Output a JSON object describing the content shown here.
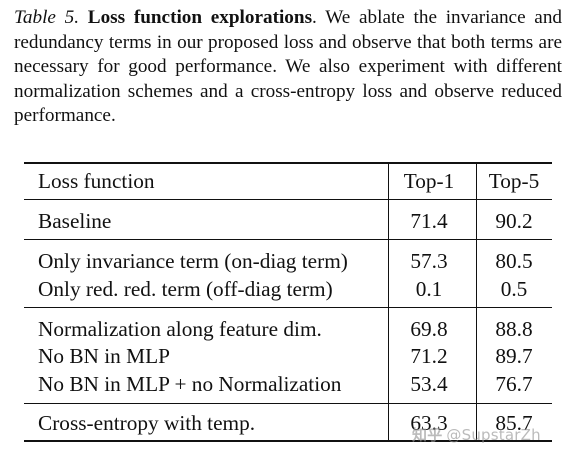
{
  "caption": {
    "label": "Table 5.",
    "title": "Loss function explorations",
    "body": ". We ablate the invariance and redundancy terms in our proposed loss and observe that both terms are necessary for good performance. We also experiment with different normalization schemes and a cross-entropy loss and observe reduced performance."
  },
  "table": {
    "headers": {
      "name": "Loss function",
      "top1": "Top-1",
      "top5": "Top-5"
    },
    "rows": [
      {
        "name": "Baseline",
        "top1": "71.4",
        "top5": "90.2"
      },
      {
        "name": "Only invariance term (on-diag term)",
        "top1": "57.3",
        "top5": "80.5"
      },
      {
        "name": "Only red. red. term (off-diag term)",
        "top1": "0.1",
        "top5": "0.5"
      },
      {
        "name": "Normalization along feature dim.",
        "top1": "69.8",
        "top5": "88.8"
      },
      {
        "name": "No BN in MLP",
        "top1": "71.2",
        "top5": "89.7"
      },
      {
        "name": "No BN in MLP + no Normalization",
        "top1": "53.4",
        "top5": "76.7"
      },
      {
        "name": "Cross-entropy with temp.",
        "top1": "63.3",
        "top5": "85.7"
      }
    ]
  },
  "watermark": {
    "logo": "知乎",
    "text": "@SupstarZh"
  }
}
